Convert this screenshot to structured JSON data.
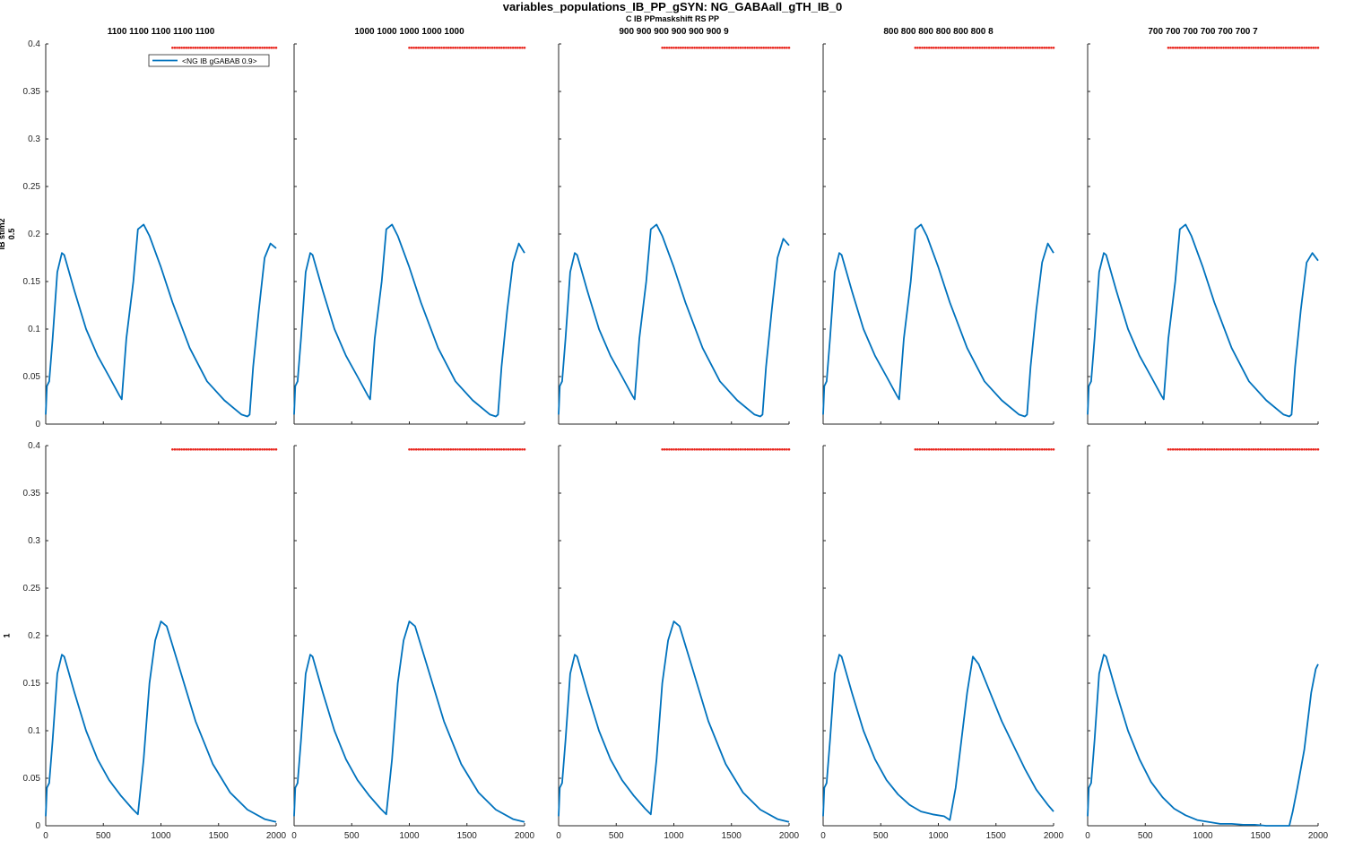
{
  "figure": {
    "title": "variables_populations_IB_PP_gSYN: NG_GABAall_gTH_IB_0",
    "subtitle": "C IB PPmaskshift RS PP"
  },
  "colors": {
    "line": "#0072BD",
    "markers": "#E8221A",
    "axes": "#262626"
  },
  "chart_data": {
    "type": "line",
    "layout": "grid 2 rows x 5 columns",
    "grid": false,
    "legend": {
      "entry": "<NG IB gGABAB 0.9>",
      "placement": "top-right of first panel"
    },
    "xlim": [
      0,
      2000
    ],
    "ylim": [
      0,
      0.4
    ],
    "xticks": [
      "0",
      "500",
      "1000",
      "1500",
      "2000"
    ],
    "yticks": [
      "0",
      "0.05",
      "0.1",
      "0.15",
      "0.2",
      "0.25",
      "0.3",
      "0.35",
      "0.4"
    ],
    "column_titles": [
      "1100 1100 1100 1100 1100",
      "1000 1000 1000 1000 1000",
      "900 900 900 900 900 900 9",
      "800 800 800 800 800 800 8",
      "700 700 700 700 700 700 7"
    ],
    "row_labels": [
      [
        "IB stim2",
        "0.5"
      ],
      [
        "1"
      ]
    ],
    "marker_y": 0.396,
    "panels": [
      [
        {
          "marker_range": [
            1100,
            2000
          ],
          "x": [
            0,
            10,
            30,
            60,
            100,
            140,
            160,
            250,
            350,
            450,
            550,
            640,
            660,
            700,
            760,
            800,
            850,
            900,
            1000,
            1100,
            1250,
            1400,
            1550,
            1700,
            1750,
            1770,
            1800,
            1850,
            1900,
            1950,
            2000
          ],
          "y": [
            0.01,
            0.04,
            0.045,
            0.09,
            0.16,
            0.18,
            0.178,
            0.14,
            0.1,
            0.072,
            0.05,
            0.03,
            0.026,
            0.09,
            0.15,
            0.205,
            0.21,
            0.198,
            0.165,
            0.128,
            0.08,
            0.045,
            0.025,
            0.01,
            0.008,
            0.01,
            0.06,
            0.12,
            0.175,
            0.19,
            0.185
          ]
        },
        {
          "marker_range": [
            1000,
            2000
          ],
          "x": [
            0,
            10,
            30,
            60,
            100,
            140,
            160,
            250,
            350,
            450,
            550,
            640,
            660,
            700,
            760,
            800,
            850,
            900,
            1000,
            1100,
            1250,
            1400,
            1550,
            1700,
            1750,
            1770,
            1800,
            1850,
            1900,
            1950,
            2000
          ],
          "y": [
            0.01,
            0.04,
            0.045,
            0.09,
            0.16,
            0.18,
            0.178,
            0.14,
            0.1,
            0.072,
            0.05,
            0.03,
            0.026,
            0.09,
            0.15,
            0.205,
            0.21,
            0.198,
            0.165,
            0.128,
            0.08,
            0.045,
            0.025,
            0.01,
            0.008,
            0.01,
            0.06,
            0.12,
            0.17,
            0.19,
            0.18
          ]
        },
        {
          "marker_range": [
            900,
            2000
          ],
          "x": [
            0,
            10,
            30,
            60,
            100,
            140,
            160,
            250,
            350,
            450,
            550,
            640,
            660,
            700,
            760,
            800,
            850,
            900,
            1000,
            1100,
            1250,
            1400,
            1550,
            1700,
            1750,
            1770,
            1800,
            1850,
            1900,
            1950,
            2000
          ],
          "y": [
            0.01,
            0.04,
            0.045,
            0.09,
            0.16,
            0.18,
            0.178,
            0.14,
            0.1,
            0.072,
            0.05,
            0.03,
            0.026,
            0.09,
            0.15,
            0.205,
            0.21,
            0.198,
            0.165,
            0.128,
            0.08,
            0.045,
            0.025,
            0.01,
            0.008,
            0.01,
            0.06,
            0.12,
            0.175,
            0.195,
            0.188
          ]
        },
        {
          "marker_range": [
            800,
            2000
          ],
          "x": [
            0,
            10,
            30,
            60,
            100,
            140,
            160,
            250,
            350,
            450,
            550,
            640,
            660,
            700,
            760,
            800,
            850,
            900,
            1000,
            1100,
            1250,
            1400,
            1550,
            1700,
            1750,
            1770,
            1800,
            1850,
            1900,
            1950,
            2000
          ],
          "y": [
            0.01,
            0.04,
            0.045,
            0.09,
            0.16,
            0.18,
            0.178,
            0.14,
            0.1,
            0.072,
            0.05,
            0.03,
            0.026,
            0.09,
            0.15,
            0.205,
            0.21,
            0.198,
            0.165,
            0.128,
            0.08,
            0.045,
            0.025,
            0.01,
            0.008,
            0.01,
            0.06,
            0.12,
            0.17,
            0.19,
            0.18
          ]
        },
        {
          "marker_range": [
            700,
            2000
          ],
          "x": [
            0,
            10,
            30,
            60,
            100,
            140,
            160,
            250,
            350,
            450,
            550,
            640,
            660,
            700,
            760,
            800,
            850,
            900,
            1000,
            1100,
            1250,
            1400,
            1550,
            1700,
            1750,
            1770,
            1800,
            1850,
            1900,
            1950,
            2000
          ],
          "y": [
            0.01,
            0.04,
            0.045,
            0.09,
            0.16,
            0.18,
            0.178,
            0.14,
            0.1,
            0.072,
            0.05,
            0.03,
            0.026,
            0.09,
            0.15,
            0.205,
            0.21,
            0.198,
            0.165,
            0.128,
            0.08,
            0.045,
            0.025,
            0.01,
            0.008,
            0.01,
            0.06,
            0.12,
            0.17,
            0.18,
            0.172
          ]
        }
      ],
      [
        {
          "marker_range": [
            1100,
            2000
          ],
          "x": [
            0,
            10,
            30,
            60,
            100,
            140,
            160,
            250,
            350,
            450,
            550,
            650,
            750,
            800,
            850,
            900,
            950,
            1000,
            1050,
            1150,
            1300,
            1450,
            1600,
            1750,
            1900,
            2000
          ],
          "y": [
            0.01,
            0.04,
            0.045,
            0.09,
            0.16,
            0.18,
            0.178,
            0.14,
            0.1,
            0.07,
            0.048,
            0.032,
            0.018,
            0.012,
            0.07,
            0.15,
            0.195,
            0.215,
            0.21,
            0.17,
            0.11,
            0.065,
            0.035,
            0.017,
            0.007,
            0.004
          ]
        },
        {
          "marker_range": [
            1000,
            2000
          ],
          "x": [
            0,
            10,
            30,
            60,
            100,
            140,
            160,
            250,
            350,
            450,
            550,
            650,
            750,
            800,
            850,
            900,
            950,
            1000,
            1050,
            1150,
            1300,
            1450,
            1600,
            1750,
            1900,
            2000
          ],
          "y": [
            0.01,
            0.04,
            0.045,
            0.09,
            0.16,
            0.18,
            0.178,
            0.14,
            0.1,
            0.07,
            0.048,
            0.032,
            0.018,
            0.012,
            0.07,
            0.15,
            0.195,
            0.215,
            0.21,
            0.17,
            0.11,
            0.065,
            0.035,
            0.017,
            0.007,
            0.004
          ]
        },
        {
          "marker_range": [
            900,
            2000
          ],
          "x": [
            0,
            10,
            30,
            60,
            100,
            140,
            160,
            250,
            350,
            450,
            550,
            650,
            750,
            800,
            850,
            900,
            950,
            1000,
            1050,
            1150,
            1300,
            1450,
            1600,
            1750,
            1900,
            2000
          ],
          "y": [
            0.01,
            0.04,
            0.045,
            0.09,
            0.16,
            0.18,
            0.178,
            0.14,
            0.1,
            0.07,
            0.048,
            0.032,
            0.018,
            0.012,
            0.07,
            0.15,
            0.195,
            0.215,
            0.21,
            0.17,
            0.11,
            0.065,
            0.035,
            0.017,
            0.007,
            0.004
          ]
        },
        {
          "marker_range": [
            800,
            2000
          ],
          "x": [
            0,
            10,
            30,
            60,
            100,
            140,
            160,
            250,
            350,
            450,
            550,
            650,
            750,
            850,
            950,
            1050,
            1100,
            1150,
            1200,
            1250,
            1300,
            1350,
            1450,
            1550,
            1650,
            1750,
            1850,
            1950,
            2000
          ],
          "y": [
            0.01,
            0.04,
            0.045,
            0.09,
            0.16,
            0.18,
            0.178,
            0.14,
            0.1,
            0.07,
            0.048,
            0.033,
            0.022,
            0.015,
            0.012,
            0.01,
            0.006,
            0.04,
            0.09,
            0.14,
            0.178,
            0.17,
            0.14,
            0.11,
            0.085,
            0.06,
            0.038,
            0.022,
            0.015
          ]
        },
        {
          "marker_range": [
            700,
            2000
          ],
          "x": [
            0,
            10,
            30,
            60,
            100,
            140,
            160,
            250,
            350,
            450,
            550,
            650,
            750,
            850,
            950,
            1050,
            1150,
            1250,
            1350,
            1450,
            1550,
            1650,
            1750,
            1780,
            1820,
            1880,
            1940,
            1980,
            2000
          ],
          "y": [
            0.01,
            0.04,
            0.045,
            0.09,
            0.16,
            0.18,
            0.178,
            0.14,
            0.1,
            0.07,
            0.046,
            0.03,
            0.018,
            0.011,
            0.006,
            0.004,
            0.002,
            0.002,
            0.001,
            0.001,
            0,
            0,
            0,
            0.015,
            0.04,
            0.08,
            0.14,
            0.165,
            0.17
          ]
        }
      ]
    ]
  }
}
